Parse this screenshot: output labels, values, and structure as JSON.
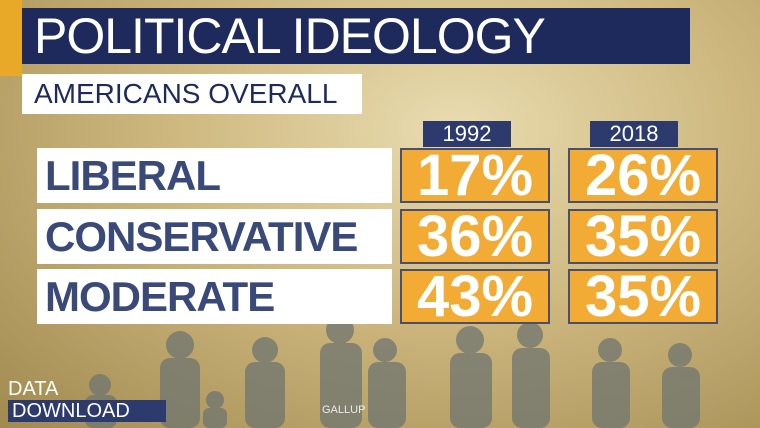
{
  "header": {
    "title": "POLITICAL IDEOLOGY",
    "subtitle": "AMERICANS OVERALL"
  },
  "table": {
    "columns": [
      "1992",
      "2018"
    ],
    "rows": [
      [
        "LIBERAL",
        "17%",
        "26%"
      ],
      [
        "CONSERVATIVE",
        "36%",
        "35%"
      ],
      [
        "MODERATE",
        "43%",
        "35%"
      ]
    ]
  },
  "branding": {
    "top": "DATA",
    "bottom": "DOWNLOAD"
  },
  "source": "GALLUP"
}
